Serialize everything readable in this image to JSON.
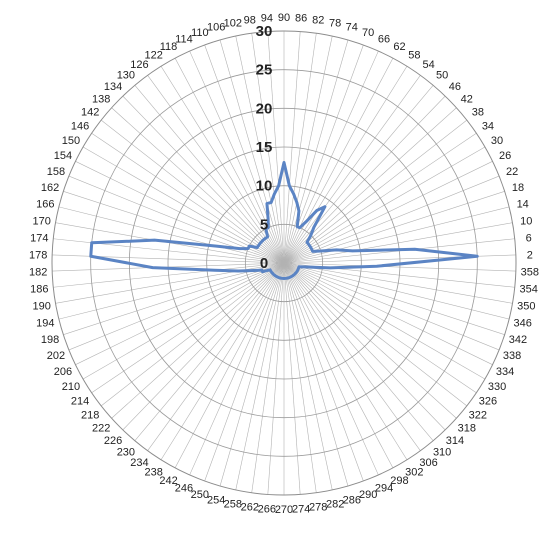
{
  "chart_data": {
    "type": "radar",
    "title": "",
    "angle_start": 2,
    "angle_step": 4,
    "angle_direction": "counterclockwise-from-right",
    "radial_range": [
      0,
      30
    ],
    "radial_ticks": [
      "0",
      "5",
      "10",
      "15",
      "20",
      "25",
      "30"
    ],
    "grid": true,
    "legend": "none",
    "series": [
      {
        "color": "#5b84c4",
        "angles": [
          2,
          6,
          10,
          14,
          18,
          22,
          26,
          30,
          34,
          38,
          42,
          46,
          50,
          54,
          58,
          62,
          66,
          70,
          74,
          78,
          82,
          86,
          90,
          94,
          98,
          102,
          106,
          110,
          114,
          118,
          122,
          126,
          130,
          134,
          138,
          142,
          146,
          150,
          154,
          158,
          162,
          166,
          170,
          174,
          178,
          182,
          186,
          190,
          194,
          198,
          202,
          206,
          210,
          214,
          218,
          222,
          226,
          230,
          234,
          238,
          242,
          246,
          250,
          254,
          258,
          262,
          266,
          270,
          274,
          278,
          282,
          286,
          290,
          294,
          298,
          302,
          306,
          310,
          314,
          318,
          322,
          326,
          330,
          334,
          338,
          342,
          346,
          350,
          354,
          358
        ],
        "values": [
          25,
          17,
          9,
          7,
          5,
          4,
          4,
          4,
          4,
          4,
          4,
          5,
          6,
          9,
          8,
          6,
          5,
          5,
          7,
          8,
          9,
          10,
          13,
          10,
          9,
          8,
          8,
          6,
          5,
          5,
          4,
          4,
          4,
          4,
          4,
          4,
          4,
          4,
          5,
          5,
          6,
          9,
          17,
          25,
          25,
          17,
          9,
          6,
          4,
          3,
          3,
          2,
          2,
          2,
          2,
          2,
          2,
          2,
          2,
          2,
          2,
          2,
          2,
          2,
          2,
          2,
          2,
          2,
          2,
          2,
          2,
          2,
          2,
          2,
          2,
          2,
          2,
          2,
          2,
          2,
          2,
          2,
          2,
          2,
          2,
          2,
          2,
          3,
          6,
          12
        ]
      }
    ]
  }
}
